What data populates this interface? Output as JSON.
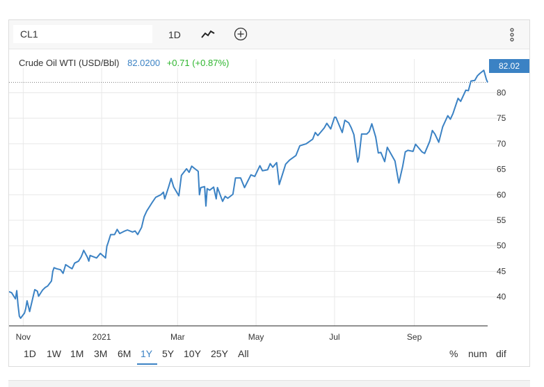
{
  "toolbar": {
    "symbol_value": "CL1",
    "interval": "1D",
    "line_type_icon": "line-chart-icon",
    "compare_icon": "plus-circle-icon",
    "menu_icon": "vertical-ellipsis-icon"
  },
  "legend": {
    "name": "Crude Oil WTI (USD/Bbl)",
    "price": "82.0200",
    "change": "+0.71 (+0.87%)"
  },
  "price_tag": "82.02",
  "colors": {
    "line": "#3b82c4",
    "change_positive": "#2db52d",
    "grid": "#e8e8e8",
    "axis": "#333333"
  },
  "ranges": {
    "items": [
      "1D",
      "1W",
      "1M",
      "3M",
      "6M",
      "1Y",
      "5Y",
      "10Y",
      "25Y",
      "All"
    ],
    "active": "1Y"
  },
  "modes": [
    "%",
    "num",
    "dif"
  ],
  "chart_data": {
    "type": "line",
    "title": "",
    "xlabel": "",
    "ylabel": "",
    "ylim": [
      34.3,
      86.6
    ],
    "y_ticks": [
      40,
      45,
      50,
      55,
      60,
      65,
      70,
      75,
      80
    ],
    "y_tick_labels": [
      "40",
      "45",
      "50",
      "55",
      "60",
      "65",
      "70",
      "75",
      "80"
    ],
    "x_ticks": [
      {
        "label": "Nov",
        "x": "2020-11-01"
      },
      {
        "label": "2021",
        "x": "2021-01-01"
      },
      {
        "label": "Mar",
        "x": "2021-03-01"
      },
      {
        "label": "May",
        "x": "2021-05-01"
      },
      {
        "label": "Jul",
        "x": "2021-07-01"
      },
      {
        "label": "Sep",
        "x": "2021-09-01"
      }
    ],
    "x_range": [
      "2020-10-21",
      "2021-10-28"
    ],
    "grid": true,
    "series": [
      {
        "values": [
          [
            "2020-10-21",
            41.0
          ],
          [
            "2020-10-23",
            40.8
          ],
          [
            "2020-10-26",
            39.6
          ],
          [
            "2020-10-27",
            41.2
          ],
          [
            "2020-10-28",
            38.4
          ],
          [
            "2020-10-29",
            36.2
          ],
          [
            "2020-10-30",
            35.8
          ],
          [
            "2020-11-02",
            36.8
          ],
          [
            "2020-11-03",
            37.7
          ],
          [
            "2020-11-04",
            39.2
          ],
          [
            "2020-11-06",
            37.1
          ],
          [
            "2020-11-09",
            40.3
          ],
          [
            "2020-11-10",
            41.4
          ],
          [
            "2020-11-12",
            41.1
          ],
          [
            "2020-11-13",
            40.1
          ],
          [
            "2020-11-16",
            41.3
          ],
          [
            "2020-11-18",
            41.8
          ],
          [
            "2020-11-20",
            42.1
          ],
          [
            "2020-11-23",
            43.1
          ],
          [
            "2020-11-24",
            45.0
          ],
          [
            "2020-11-25",
            45.7
          ],
          [
            "2020-11-27",
            45.5
          ],
          [
            "2020-11-30",
            45.3
          ],
          [
            "2020-12-02",
            44.6
          ],
          [
            "2020-12-04",
            46.3
          ],
          [
            "2020-12-07",
            45.8
          ],
          [
            "2020-12-09",
            45.5
          ],
          [
            "2020-12-11",
            46.6
          ],
          [
            "2020-12-14",
            47.0
          ],
          [
            "2020-12-16",
            47.8
          ],
          [
            "2020-12-17",
            48.4
          ],
          [
            "2020-12-18",
            49.1
          ],
          [
            "2020-12-21",
            47.7
          ],
          [
            "2020-12-22",
            47.0
          ],
          [
            "2020-12-23",
            48.1
          ],
          [
            "2020-12-28",
            47.6
          ],
          [
            "2020-12-31",
            48.5
          ],
          [
            "2021-01-04",
            47.6
          ],
          [
            "2021-01-05",
            49.9
          ],
          [
            "2021-01-06",
            50.6
          ],
          [
            "2021-01-08",
            52.2
          ],
          [
            "2021-01-11",
            52.2
          ],
          [
            "2021-01-13",
            53.2
          ],
          [
            "2021-01-15",
            52.4
          ],
          [
            "2021-01-19",
            52.9
          ],
          [
            "2021-01-21",
            53.1
          ],
          [
            "2021-01-25",
            52.7
          ],
          [
            "2021-01-27",
            52.9
          ],
          [
            "2021-01-29",
            52.2
          ],
          [
            "2021-02-01",
            53.6
          ],
          [
            "2021-02-03",
            55.7
          ],
          [
            "2021-02-05",
            56.8
          ],
          [
            "2021-02-09",
            58.4
          ],
          [
            "2021-02-12",
            59.5
          ],
          [
            "2021-02-16",
            60.0
          ],
          [
            "2021-02-18",
            60.5
          ],
          [
            "2021-02-19",
            59.2
          ],
          [
            "2021-02-22",
            61.5
          ],
          [
            "2021-02-24",
            63.2
          ],
          [
            "2021-02-26",
            61.5
          ],
          [
            "2021-03-02",
            59.8
          ],
          [
            "2021-03-04",
            63.8
          ],
          [
            "2021-03-08",
            65.1
          ],
          [
            "2021-03-10",
            64.4
          ],
          [
            "2021-03-12",
            65.6
          ],
          [
            "2021-03-16",
            64.8
          ],
          [
            "2021-03-17",
            64.6
          ],
          [
            "2021-03-18",
            60.0
          ],
          [
            "2021-03-19",
            61.4
          ],
          [
            "2021-03-22",
            61.6
          ],
          [
            "2021-03-23",
            57.8
          ],
          [
            "2021-03-24",
            61.2
          ],
          [
            "2021-03-26",
            60.9
          ],
          [
            "2021-03-29",
            61.5
          ],
          [
            "2021-03-31",
            59.2
          ],
          [
            "2021-04-01",
            61.4
          ],
          [
            "2021-04-05",
            58.7
          ],
          [
            "2021-04-07",
            59.7
          ],
          [
            "2021-04-09",
            59.3
          ],
          [
            "2021-04-13",
            60.1
          ],
          [
            "2021-04-15",
            63.3
          ],
          [
            "2021-04-19",
            63.3
          ],
          [
            "2021-04-22",
            61.4
          ],
          [
            "2021-04-27",
            63.9
          ],
          [
            "2021-04-30",
            63.6
          ],
          [
            "2021-05-04",
            65.7
          ],
          [
            "2021-05-06",
            64.7
          ],
          [
            "2021-05-10",
            64.9
          ],
          [
            "2021-05-12",
            66.1
          ],
          [
            "2021-05-14",
            65.4
          ],
          [
            "2021-05-17",
            66.3
          ],
          [
            "2021-05-19",
            62.0
          ],
          [
            "2021-05-21",
            63.6
          ],
          [
            "2021-05-24",
            66.0
          ],
          [
            "2021-05-27",
            66.8
          ],
          [
            "2021-06-01",
            67.7
          ],
          [
            "2021-06-04",
            69.6
          ],
          [
            "2021-06-09",
            70.0
          ],
          [
            "2021-06-14",
            70.9
          ],
          [
            "2021-06-16",
            72.2
          ],
          [
            "2021-06-18",
            71.6
          ],
          [
            "2021-06-23",
            73.1
          ],
          [
            "2021-06-25",
            74.0
          ],
          [
            "2021-06-28",
            72.9
          ],
          [
            "2021-07-01",
            75.2
          ],
          [
            "2021-07-02",
            75.2
          ],
          [
            "2021-07-07",
            72.2
          ],
          [
            "2021-07-09",
            74.6
          ],
          [
            "2021-07-12",
            74.1
          ],
          [
            "2021-07-14",
            73.1
          ],
          [
            "2021-07-16",
            71.8
          ],
          [
            "2021-07-19",
            66.4
          ],
          [
            "2021-07-20",
            67.4
          ],
          [
            "2021-07-22",
            71.9
          ],
          [
            "2021-07-26",
            71.9
          ],
          [
            "2021-07-28",
            72.4
          ],
          [
            "2021-07-30",
            73.9
          ],
          [
            "2021-08-02",
            71.3
          ],
          [
            "2021-08-04",
            68.2
          ],
          [
            "2021-08-06",
            68.3
          ],
          [
            "2021-08-09",
            66.5
          ],
          [
            "2021-08-11",
            69.3
          ],
          [
            "2021-08-13",
            68.4
          ],
          [
            "2021-08-17",
            66.6
          ],
          [
            "2021-08-19",
            63.7
          ],
          [
            "2021-08-20",
            62.3
          ],
          [
            "2021-08-23",
            65.6
          ],
          [
            "2021-08-25",
            68.4
          ],
          [
            "2021-08-27",
            68.7
          ],
          [
            "2021-08-31",
            68.5
          ],
          [
            "2021-09-02",
            69.9
          ],
          [
            "2021-09-07",
            68.4
          ],
          [
            "2021-09-09",
            68.1
          ],
          [
            "2021-09-13",
            70.5
          ],
          [
            "2021-09-15",
            72.6
          ],
          [
            "2021-09-17",
            71.9
          ],
          [
            "2021-09-20",
            70.3
          ],
          [
            "2021-09-23",
            73.3
          ],
          [
            "2021-09-27",
            75.5
          ],
          [
            "2021-09-29",
            74.8
          ],
          [
            "2021-10-01",
            75.9
          ],
          [
            "2021-10-05",
            78.9
          ],
          [
            "2021-10-07",
            78.3
          ],
          [
            "2021-10-11",
            80.5
          ],
          [
            "2021-10-13",
            80.4
          ],
          [
            "2021-10-15",
            82.3
          ],
          [
            "2021-10-18",
            82.4
          ],
          [
            "2021-10-20",
            83.3
          ],
          [
            "2021-10-22",
            83.8
          ],
          [
            "2021-10-25",
            84.4
          ],
          [
            "2021-10-27",
            82.6
          ],
          [
            "2021-10-28",
            82.02
          ]
        ]
      }
    ]
  }
}
